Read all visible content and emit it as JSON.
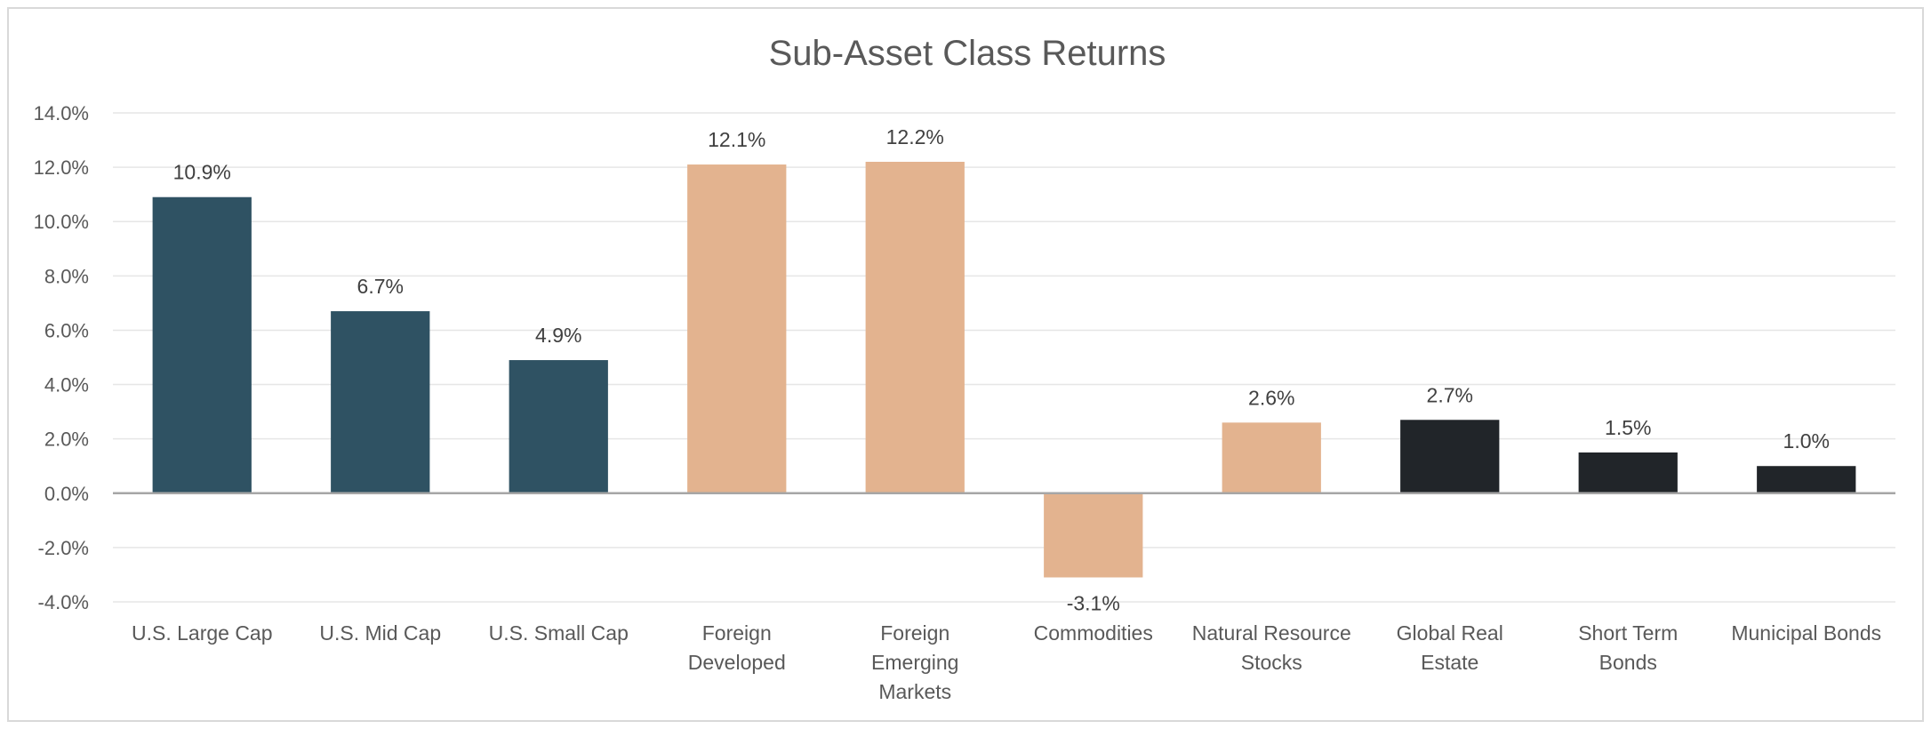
{
  "chart_data": {
    "type": "bar",
    "title": "Sub-Asset Class Returns",
    "xlabel": "",
    "ylabel": "",
    "ylim": [
      -4.0,
      14.0
    ],
    "ytick_step": 2.0,
    "y_tick_labels": [
      "-4.0%",
      "-2.0%",
      "0.0%",
      "2.0%",
      "4.0%",
      "6.0%",
      "8.0%",
      "10.0%",
      "12.0%",
      "14.0%"
    ],
    "grid": true,
    "legend": "none",
    "categories": [
      [
        "U.S. Large Cap"
      ],
      [
        "U.S. Mid Cap"
      ],
      [
        "U.S. Small Cap"
      ],
      [
        "Foreign",
        "Developed"
      ],
      [
        "Foreign",
        "Emerging",
        "Markets"
      ],
      [
        "Commodities"
      ],
      [
        "Natural Resource",
        "Stocks"
      ],
      [
        "Global Real",
        "Estate"
      ],
      [
        "Short Term",
        "Bonds"
      ],
      [
        "Municipal Bonds"
      ]
    ],
    "values": [
      10.9,
      6.7,
      4.9,
      12.1,
      12.2,
      -3.1,
      2.6,
      2.7,
      1.5,
      1.0
    ],
    "data_labels": [
      "10.9%",
      "6.7%",
      "4.9%",
      "12.1%",
      "12.2%",
      "-3.1%",
      "2.6%",
      "2.7%",
      "1.5%",
      "1.0%"
    ],
    "bar_colors": [
      "#2f5263",
      "#2f5263",
      "#2f5263",
      "#e3b38f",
      "#e3b38f",
      "#e3b38f",
      "#e3b38f",
      "#212529",
      "#212529",
      "#212529"
    ],
    "colors": {
      "gridline": "#e6e6e6",
      "axis": "#a6a6a6",
      "text": "#595959"
    }
  }
}
